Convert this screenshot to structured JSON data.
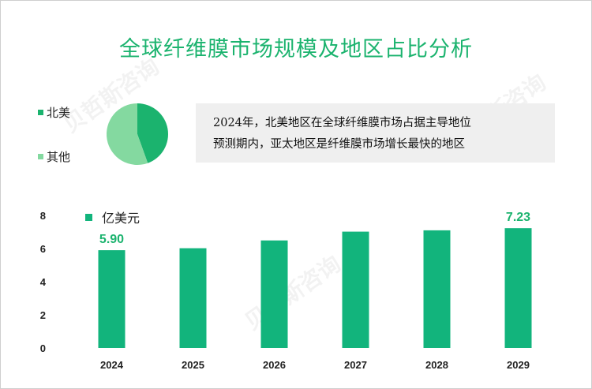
{
  "title": "全球纤维膜市场规模及地区占比分析",
  "pie": {
    "legend": [
      {
        "label": "北美",
        "color": "#1bb36e"
      },
      {
        "label": "其他",
        "color": "#84d9a0"
      }
    ],
    "colors": [
      "#1bb36e",
      "#84d9a0"
    ]
  },
  "note": {
    "line1": "2024年，北美地区在全球纤维膜市场占据主导地位",
    "line2": "预测期内，亚太地区是纤维膜市场增长最快的地区"
  },
  "watermark": "贝哲斯咨询",
  "chart_data": {
    "type": "bar",
    "categories": [
      "2024",
      "2025",
      "2026",
      "2027",
      "2028",
      "2029"
    ],
    "series": [
      {
        "name": "亿美元",
        "values": [
          5.9,
          6.02,
          6.49,
          7.02,
          7.1,
          7.23
        ],
        "color": "#12b47c"
      }
    ],
    "data_labels": [
      "5.90",
      "",
      "",
      "",
      "",
      "7.23"
    ],
    "ylim": [
      0,
      8
    ],
    "yticks": [
      0,
      2,
      4,
      6,
      8
    ],
    "xlabel": "",
    "ylabel": "",
    "grid": false,
    "legend_position": "top-left"
  }
}
